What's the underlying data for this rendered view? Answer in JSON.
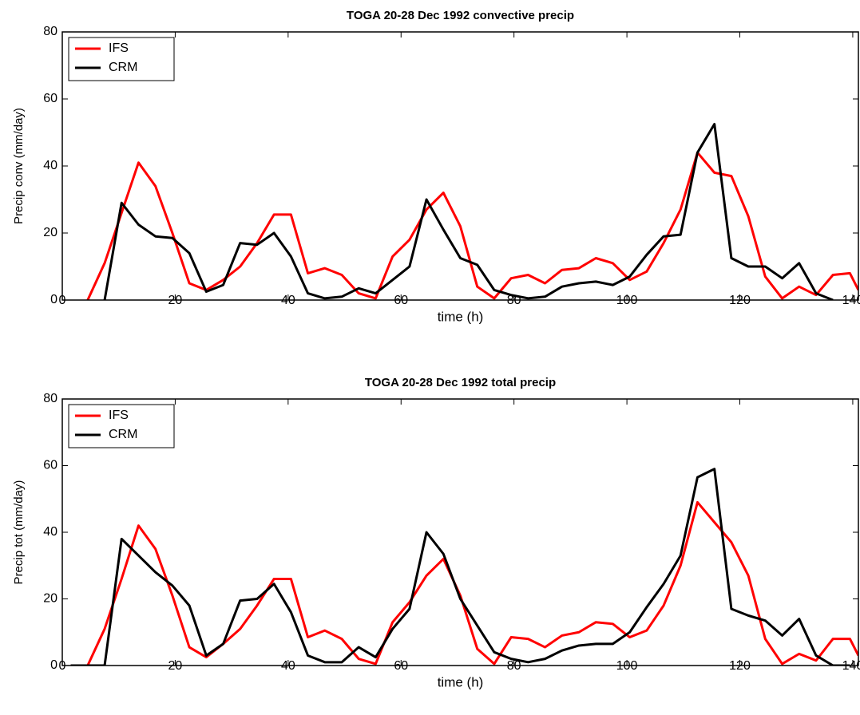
{
  "chart_data": [
    {
      "type": "line",
      "title": "TOGA 20-28 Dec 1992 convective precip",
      "x_label": "time (h)",
      "y_label": "Precip conv (mm/day)",
      "x": [
        1.5,
        4.5,
        7.5,
        10.5,
        13.5,
        16.5,
        19.5,
        22.5,
        25.5,
        28.5,
        31.5,
        34.5,
        37.5,
        40.5,
        43.5,
        46.5,
        49.5,
        52.5,
        55.5,
        58.5,
        61.5,
        64.5,
        67.5,
        70.5,
        73.5,
        76.5,
        79.5,
        82.5,
        85.5,
        88.5,
        91.5,
        94.5,
        97.5,
        100.5,
        103.5,
        106.5,
        109.5,
        112.5,
        115.5,
        118.5,
        121.5,
        124.5,
        127.5,
        130.5,
        133.5,
        136.5,
        139.5,
        141
      ],
      "series": [
        {
          "name": "IFS",
          "color": "#ff0000",
          "values": [
            null,
            0,
            11,
            26,
            41,
            34,
            20,
            5,
            3,
            6,
            10,
            17,
            25.5,
            25.5,
            8,
            9.5,
            7.5,
            2,
            0.5,
            13,
            18,
            27,
            32,
            22,
            4,
            0.5,
            6.5,
            7.5,
            5,
            9,
            9.5,
            12.5,
            11,
            6,
            8.5,
            17,
            27,
            44,
            38,
            37,
            25,
            7,
            0.5,
            4,
            1.5,
            7.5,
            8,
            3
          ]
        },
        {
          "name": "CRM",
          "color": "#000000",
          "values": [
            null,
            null,
            0,
            29,
            22.5,
            19,
            18.5,
            14,
            2.5,
            4.5,
            17,
            16.5,
            20,
            13,
            2,
            0.5,
            1,
            3.5,
            2,
            6,
            10,
            30,
            21,
            12.5,
            10.5,
            3,
            1.5,
            0.5,
            1,
            4,
            5,
            5.5,
            4.5,
            7,
            13.5,
            19,
            19.5,
            44,
            52.5,
            12.5,
            10,
            10,
            6.5,
            11,
            2,
            0,
            null,
            null
          ]
        }
      ],
      "xlim": [
        0,
        141
      ],
      "xticks": [
        0,
        20,
        40,
        60,
        80,
        100,
        120,
        140
      ],
      "ylim": [
        0,
        80
      ],
      "yticks": [
        0,
        20,
        40,
        60,
        80
      ]
    },
    {
      "type": "line",
      "title": "TOGA 20-28 Dec 1992  total precip",
      "x_label": "time (h)",
      "y_label": "Precip tot (mm/day)",
      "x": [
        1.5,
        4.5,
        7.5,
        10.5,
        13.5,
        16.5,
        19.5,
        22.5,
        25.5,
        28.5,
        31.5,
        34.5,
        37.5,
        40.5,
        43.5,
        46.5,
        49.5,
        52.5,
        55.5,
        58.5,
        61.5,
        64.5,
        67.5,
        70.5,
        73.5,
        76.5,
        79.5,
        82.5,
        85.5,
        88.5,
        91.5,
        94.5,
        97.5,
        100.5,
        103.5,
        106.5,
        109.5,
        112.5,
        115.5,
        118.5,
        121.5,
        124.5,
        127.5,
        130.5,
        133.5,
        136.5,
        139.5,
        141
      ],
      "series": [
        {
          "name": "IFS",
          "color": "#ff0000",
          "values": [
            0,
            0,
            11,
            26,
            42,
            35,
            21,
            5.5,
            2.5,
            6.5,
            11,
            18,
            26,
            26,
            8.5,
            10.5,
            8,
            2,
            0.5,
            13,
            19,
            27,
            32,
            21,
            5,
            0.5,
            8.5,
            8,
            5.5,
            9,
            10,
            13,
            12.5,
            8.5,
            10.5,
            18,
            30,
            49,
            43,
            37,
            27,
            8,
            0.5,
            3.5,
            1.5,
            8,
            8,
            3
          ]
        },
        {
          "name": "CRM",
          "color": "#000000",
          "values": [
            0,
            0,
            0,
            38,
            33,
            28,
            24,
            18,
            3,
            6.5,
            19.5,
            20,
            24.5,
            16,
            3,
            1,
            1,
            5.5,
            2.5,
            11,
            17,
            40,
            33.5,
            20,
            12,
            4,
            2,
            1,
            2,
            4.5,
            6,
            6.5,
            6.5,
            10,
            17.5,
            24.5,
            33,
            56.5,
            59,
            17,
            15,
            13.5,
            9,
            14,
            3,
            0,
            0,
            null
          ]
        }
      ],
      "xlim": [
        0,
        141
      ],
      "xticks": [
        0,
        20,
        40,
        60,
        80,
        100,
        120,
        140
      ],
      "ylim": [
        0,
        80
      ],
      "yticks": [
        0,
        20,
        40,
        60,
        80
      ]
    }
  ]
}
